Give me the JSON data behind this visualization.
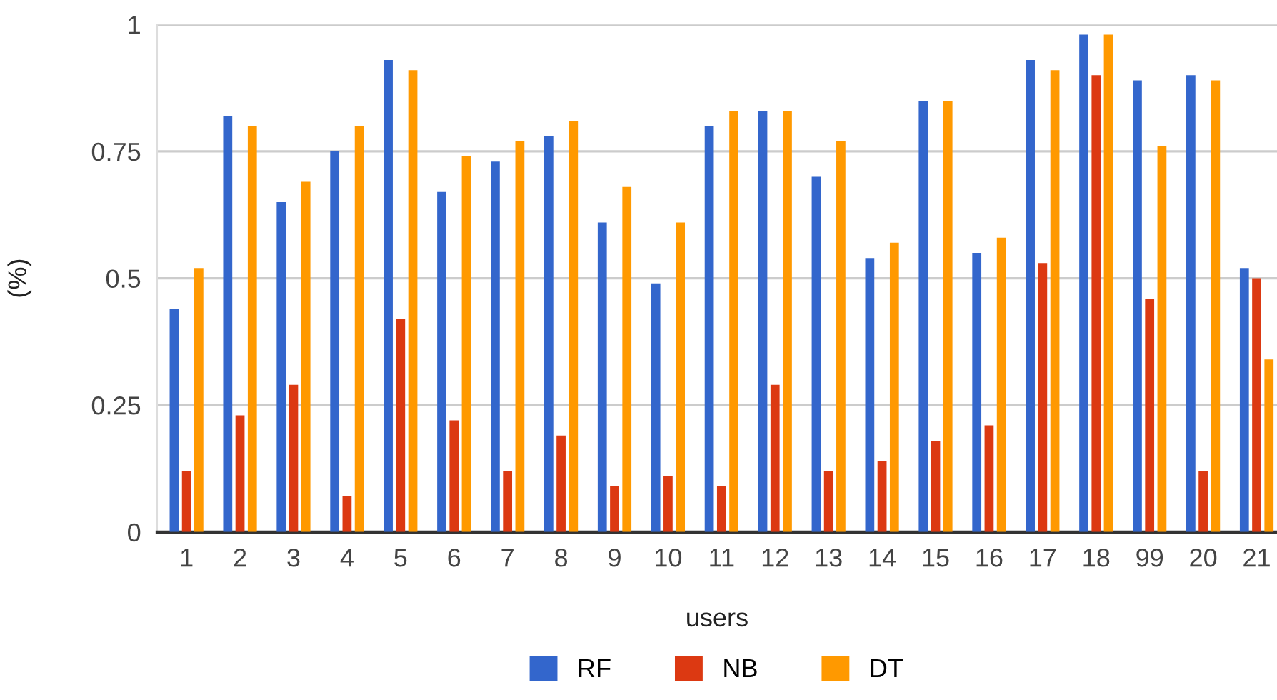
{
  "chart_data": {
    "type": "bar",
    "xlabel": "users",
    "ylabel": "(%)",
    "categories": [
      "1",
      "2",
      "3",
      "4",
      "5",
      "6",
      "7",
      "8",
      "9",
      "10",
      "11",
      "12",
      "13",
      "14",
      "15",
      "16",
      "17",
      "18",
      "99",
      "20",
      "21"
    ],
    "series": [
      {
        "name": "RF",
        "color": "#3366cc",
        "values": [
          0.44,
          0.82,
          0.65,
          0.75,
          0.93,
          0.67,
          0.73,
          0.78,
          0.61,
          0.49,
          0.8,
          0.83,
          0.7,
          0.54,
          0.85,
          0.55,
          0.93,
          0.98,
          0.89,
          0.9,
          0.52
        ]
      },
      {
        "name": "NB",
        "color": "#dc3912",
        "values": [
          0.12,
          0.23,
          0.29,
          0.07,
          0.42,
          0.22,
          0.12,
          0.19,
          0.09,
          0.11,
          0.09,
          0.29,
          0.12,
          0.14,
          0.18,
          0.21,
          0.53,
          0.9,
          0.46,
          0.12,
          0.5
        ]
      },
      {
        "name": "DT",
        "color": "#ff9900",
        "values": [
          0.52,
          0.8,
          0.69,
          0.8,
          0.91,
          0.74,
          0.77,
          0.81,
          0.68,
          0.61,
          0.83,
          0.83,
          0.77,
          0.57,
          0.85,
          0.58,
          0.91,
          0.98,
          0.76,
          0.89,
          0.34
        ]
      }
    ],
    "ylim": [
      0,
      1
    ],
    "yticks": [
      0,
      0.25,
      0.5,
      0.75,
      1
    ],
    "grid": "y",
    "legend": "bottom"
  }
}
